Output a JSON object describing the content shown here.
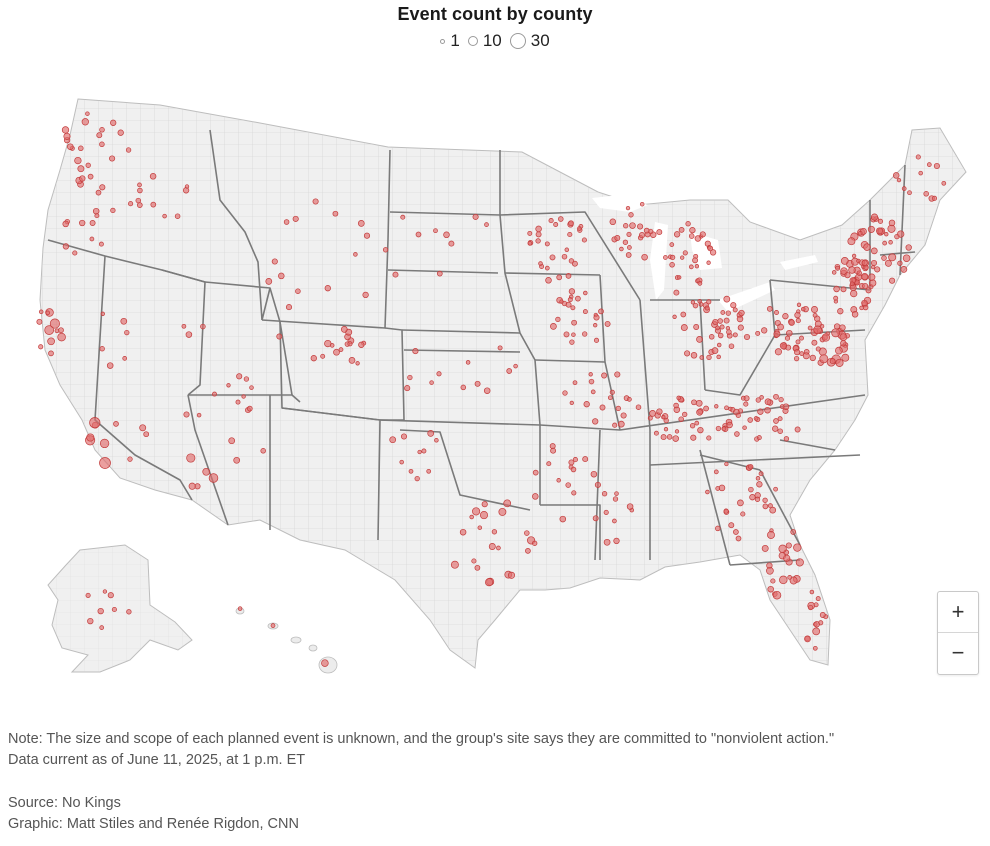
{
  "header": {
    "title": "Event count by county",
    "legend": [
      {
        "label": "1",
        "value": 1
      },
      {
        "label": "10",
        "value": 10
      },
      {
        "label": "30",
        "value": 30
      }
    ]
  },
  "map": {
    "land_color": "#f0f0f0",
    "county_line_color": "#c9c9c9",
    "state_line_color": "#7f7f7f",
    "marker_fill": "#e06b6b",
    "marker_stroke": "#c23b3b",
    "marker_opacity": 0.65
  },
  "zoom": {
    "in": "+",
    "out": "−"
  },
  "notes": {
    "note_line1": "Note: The size and scope of each planned event is unknown, and the group's site says they are committed to \"nonviolent action.\"",
    "note_line2": "Data current as of June 11, 2025, at 1 p.m. ET",
    "source": "Source: No Kings",
    "graphic": "Graphic: Matt Stiles and Renée Rigdon, CNN"
  }
}
